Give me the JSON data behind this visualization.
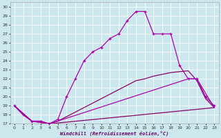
{
  "xlabel": "Windchill (Refroidissement éolien,°C)",
  "background_color": "#cce8ee",
  "grid_color": "#ffffff",
  "line_color": "#aa00aa",
  "line_color2": "#880066",
  "xlim": [
    -0.5,
    23.5
  ],
  "ylim": [
    17,
    30.5
  ],
  "xticks": [
    0,
    1,
    2,
    3,
    4,
    5,
    6,
    7,
    8,
    9,
    10,
    11,
    12,
    13,
    14,
    15,
    16,
    17,
    18,
    19,
    20,
    21,
    22,
    23
  ],
  "yticks": [
    17,
    18,
    19,
    20,
    21,
    22,
    23,
    24,
    25,
    26,
    27,
    28,
    29,
    30
  ],
  "series1_x": [
    0,
    1,
    2,
    3,
    4,
    5,
    6,
    7,
    8,
    9,
    10,
    11,
    12,
    13,
    14,
    15,
    16,
    17,
    18,
    19,
    20,
    21,
    22,
    23
  ],
  "series1_y": [
    19,
    18,
    17.3,
    17.3,
    17,
    17.5,
    20,
    22,
    24,
    25,
    25.5,
    26.5,
    27,
    28.5,
    29.5,
    29.5,
    27,
    27,
    27,
    23.5,
    22,
    22,
    20,
    19
  ],
  "series2_x": [
    0,
    1,
    2,
    3,
    4,
    5,
    6,
    7,
    8,
    9,
    10,
    11,
    12,
    13,
    14,
    15,
    16,
    17,
    18,
    19,
    20,
    21,
    22,
    23
  ],
  "series2_y": [
    19,
    18,
    17.3,
    17.3,
    17,
    17.3,
    17.8,
    18.3,
    18.8,
    19.3,
    19.8,
    20.3,
    20.8,
    21.3,
    21.8,
    22.0,
    22.3,
    22.5,
    22.7,
    22.8,
    22.9,
    21.8,
    19.8,
    18.8
  ],
  "series3_x": [
    0,
    2,
    4,
    23
  ],
  "series3_y": [
    19,
    17.3,
    17,
    18.8
  ],
  "series4_x": [
    0,
    2,
    4,
    20,
    21,
    23
  ],
  "series4_y": [
    19,
    17.3,
    17,
    22,
    22,
    18.8
  ]
}
